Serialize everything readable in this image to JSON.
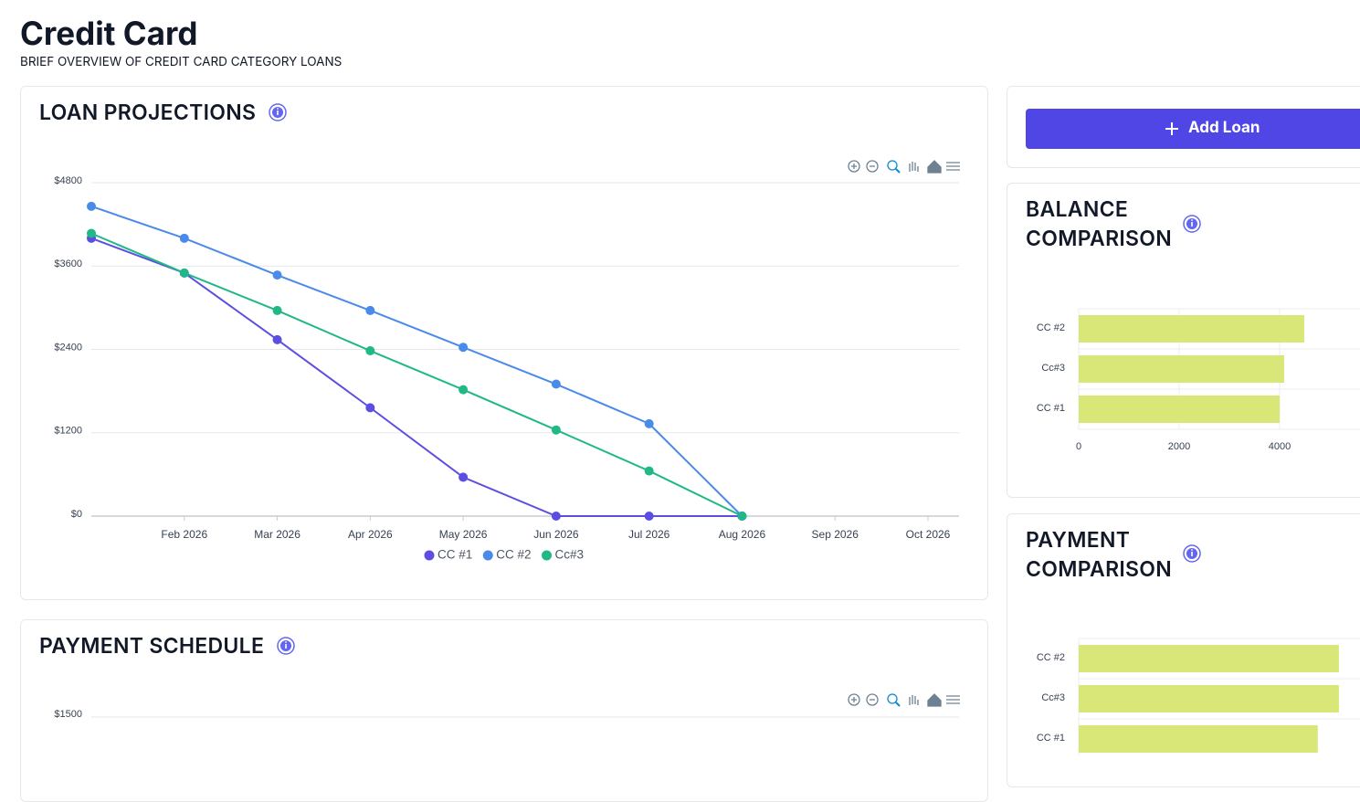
{
  "header": {
    "title": "Credit Card",
    "subtitle": "BRIEF OVERVIEW OF CREDIT CARD CATEGORY LOANS"
  },
  "add_loan": {
    "label": "Add Loan"
  },
  "loan_projections": {
    "title": "LOAN PROJECTIONS",
    "chart": {
      "type": "line",
      "x": [
        "2026-01",
        "2026-02",
        "2026-03",
        "2026-04",
        "2026-05",
        "2026-06",
        "2026-07",
        "2026-08"
      ],
      "xlim": [
        "2026-01",
        "2026-10"
      ],
      "xticks": [
        {
          "value": "2026-02",
          "label": "Feb 2026"
        },
        {
          "value": "2026-03",
          "label": "Mar 2026"
        },
        {
          "value": "2026-04",
          "label": "Apr 2026"
        },
        {
          "value": "2026-05",
          "label": "May 2026"
        },
        {
          "value": "2026-06",
          "label": "Jun 2026"
        },
        {
          "value": "2026-07",
          "label": "Jul 2026"
        },
        {
          "value": "2026-08",
          "label": "Aug 2026"
        },
        {
          "value": "2026-09",
          "label": "Sep 2026"
        },
        {
          "value": "2026-10",
          "label": "Oct 2026"
        }
      ],
      "ylim": [
        0,
        4800
      ],
      "yticks": [
        {
          "value": 0,
          "label": "$0"
        },
        {
          "value": 1200,
          "label": "$1200"
        },
        {
          "value": 2400,
          "label": "$2400"
        },
        {
          "value": 3600,
          "label": "$3600"
        },
        {
          "value": 4800,
          "label": "$4800"
        }
      ],
      "grid": true,
      "series": [
        {
          "name": "CC #1",
          "color": "#5b4ee0",
          "values": [
            4000,
            3500,
            2540,
            1560,
            560,
            0,
            0,
            0
          ]
        },
        {
          "name": "CC #2",
          "color": "#4a8ae8",
          "values": [
            4460,
            4000,
            3470,
            2960,
            2430,
            1900,
            1330,
            0
          ]
        },
        {
          "name": "Cc#3",
          "color": "#1fb886",
          "values": [
            4070,
            3500,
            2960,
            2380,
            1820,
            1240,
            650,
            0
          ]
        }
      ]
    }
  },
  "payment_schedule": {
    "title": "PAYMENT SCHEDULE",
    "chart": {
      "type": "line",
      "yticks": [
        {
          "value": 1500,
          "label": "$1500"
        }
      ]
    }
  },
  "balance_comparison": {
    "title": "BALANCE COMPARISON",
    "chart": {
      "type": "bar",
      "orientation": "horizontal",
      "categories": [
        "CC #2",
        "Cc#3",
        "CC #1"
      ],
      "values": [
        4490,
        4090,
        4000
      ],
      "color": "#d9e778",
      "xlim": [
        0,
        5600
      ],
      "xticks": [
        0,
        2000,
        4000
      ]
    }
  },
  "payment_comparison": {
    "title": "PAYMENT COMPARISON",
    "chart": {
      "type": "bar",
      "orientation": "horizontal",
      "categories": [
        "CC #2",
        "Cc#3",
        "CC #1"
      ],
      "values": [
        5180,
        5180,
        4760
      ],
      "color": "#d9e778",
      "xlim": [
        0,
        5600
      ]
    }
  }
}
